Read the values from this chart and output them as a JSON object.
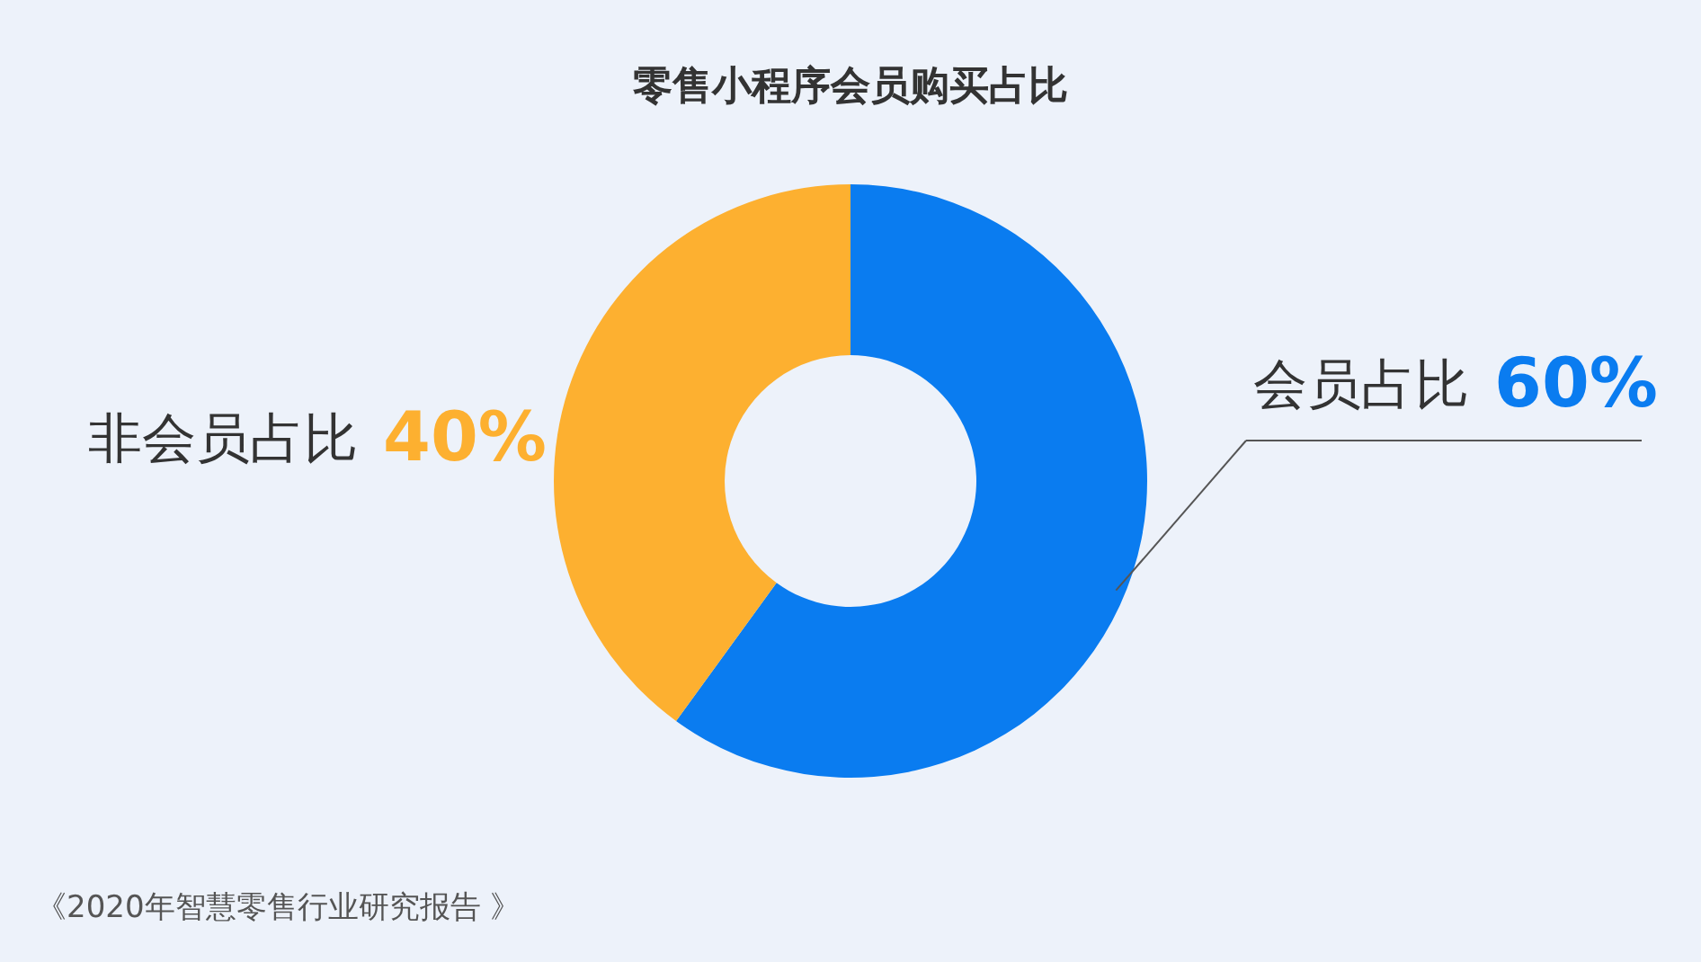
{
  "chart_data": {
    "type": "donut",
    "title": "零售小程序会员购买占比",
    "categories": [
      "会员占比",
      "非会员占比"
    ],
    "values": [
      60,
      40
    ],
    "colors": [
      "#0a7cf0",
      "#fdb030"
    ],
    "value_labels": [
      "60%",
      "40%"
    ],
    "legend": false,
    "annotations": [
      "《2020年智慧零售行业研究报告 》"
    ]
  }
}
